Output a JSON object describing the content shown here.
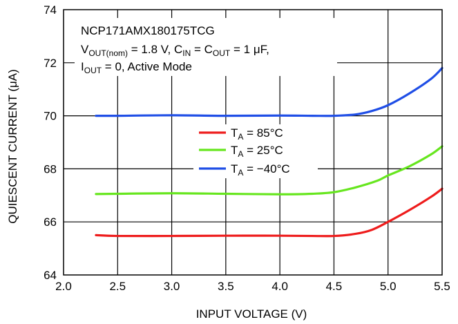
{
  "chart_data": {
    "type": "line",
    "title": "",
    "xlabel": "INPUT VOLTAGE (V)",
    "ylabel_parts": [
      "QUIESCENT CURRENT (",
      "μ",
      "A)"
    ],
    "xlim": [
      2.0,
      5.5
    ],
    "ylim": [
      64,
      74
    ],
    "xticks": [
      "2.0",
      "2.5",
      "3.0",
      "3.5",
      "4.0",
      "4.5",
      "5.0",
      "5.5"
    ],
    "xtick_values": [
      2.0,
      2.5,
      3.0,
      3.5,
      4.0,
      4.5,
      5.0,
      5.5
    ],
    "yticks": [
      "64",
      "66",
      "68",
      "70",
      "72",
      "74"
    ],
    "ytick_values": [
      64,
      66,
      68,
      70,
      72,
      74
    ],
    "grid": true,
    "legend_position": "center-right",
    "annotation": {
      "line1": "NCP171AMX180175TCG",
      "line2": {
        "v": "V",
        "v_sub": "OUT(nom)",
        "mid": " = 1.8 V, C",
        "cin_sub": "IN",
        "mid2": " = C",
        "cout_sub": "OUT",
        "end": " = 1 ",
        "mu": "μ",
        "unit": "F,"
      },
      "line3": {
        "i": "I",
        "i_sub": "OUT",
        "end": " = 0, Active Mode"
      }
    },
    "series": [
      {
        "label_main": "T",
        "label_sub": "A",
        "label_rest": " = 85°C",
        "color": "#ee1c1c",
        "x": [
          2.3,
          2.5,
          3.0,
          3.5,
          4.0,
          4.3,
          4.5,
          4.7,
          4.85,
          5.0,
          5.2,
          5.4,
          5.5
        ],
        "y": [
          65.5,
          65.47,
          65.47,
          65.48,
          65.48,
          65.47,
          65.47,
          65.55,
          65.7,
          66.0,
          66.45,
          66.95,
          67.25
        ]
      },
      {
        "label_main": "T",
        "label_sub": "A",
        "label_rest": " = 25°C",
        "color": "#66e61e",
        "x": [
          2.3,
          2.5,
          3.0,
          3.5,
          4.0,
          4.3,
          4.5,
          4.7,
          4.9,
          5.0,
          5.2,
          5.4,
          5.5
        ],
        "y": [
          67.05,
          67.06,
          67.08,
          67.06,
          67.04,
          67.06,
          67.12,
          67.3,
          67.55,
          67.75,
          68.1,
          68.55,
          68.85
        ]
      },
      {
        "label_main": "T",
        "label_sub": "A",
        "label_rest": " = −40°C",
        "color": "#1f4ee6",
        "x": [
          2.3,
          2.5,
          3.0,
          3.5,
          4.0,
          4.3,
          4.5,
          4.7,
          4.85,
          5.0,
          5.2,
          5.4,
          5.5
        ],
        "y": [
          70.0,
          70.0,
          70.02,
          70.0,
          70.01,
          70.0,
          70.0,
          70.05,
          70.18,
          70.4,
          70.85,
          71.4,
          71.8
        ]
      }
    ]
  }
}
